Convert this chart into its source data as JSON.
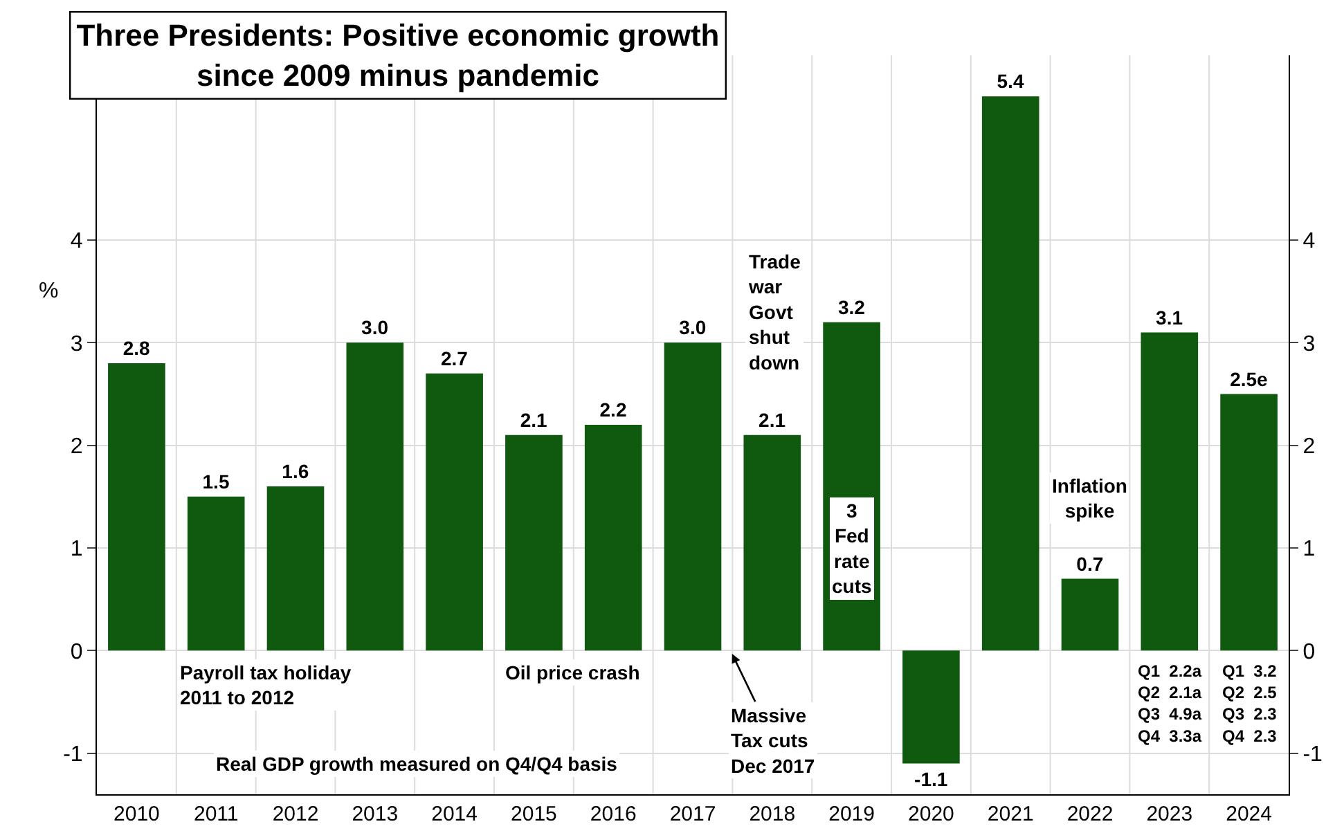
{
  "chart_data": {
    "type": "bar",
    "title": "Three Presidents: Positive economic growth\nsince 2009 minus pandemic",
    "ylabel": "%",
    "categories": [
      "2010",
      "2011",
      "2012",
      "2013",
      "2014",
      "2015",
      "2016",
      "2017",
      "2018",
      "2019",
      "2020",
      "2021",
      "2022",
      "2023",
      "2024"
    ],
    "values": [
      2.8,
      1.5,
      1.6,
      3.0,
      2.7,
      2.1,
      2.2,
      3.0,
      2.1,
      3.2,
      -1.1,
      5.4,
      0.7,
      3.1,
      2.5
    ],
    "value_labels": [
      "2.8",
      "1.5",
      "1.6",
      "3.0",
      "2.7",
      "2.1",
      "2.2",
      "3.0",
      "2.1",
      "3.2",
      "-1.1",
      "5.4",
      "0.7",
      "3.1",
      "2.5e"
    ],
    "color": "#0f5a0f",
    "ylim": [
      -1.4,
      5.8
    ],
    "yticks": [
      -1,
      0,
      1,
      2,
      3,
      4
    ],
    "y2lim": [
      -1.4,
      5.8
    ],
    "y2ticks": [
      -1,
      0,
      1,
      2,
      3,
      4
    ],
    "grid": true,
    "annotations": [
      "Trade\nwar\nGovt\nshut\ndown",
      "3\nFed\nrate\ncuts",
      "Inflation\nspike",
      "Massive\nTax cuts\nDec 2017",
      "Q1  2.2a\nQ2  2.1a\nQ3  4.9a\nQ4  3.3a",
      "Q1  3.2\nQ2  2.5\nQ3  2.3\nQ4  2.3",
      "Payroll tax holiday\n2011 to 2012",
      "Oil price crash",
      "Real GDP growth measured on Q4/Q4 basis"
    ]
  }
}
